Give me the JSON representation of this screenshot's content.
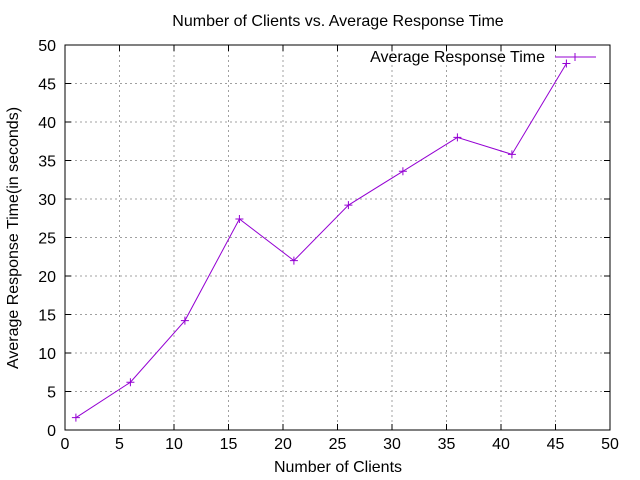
{
  "chart_data": {
    "type": "line",
    "title": "Number of Clients vs. Average Response Time",
    "xlabel": "Number of Clients",
    "ylabel": "Average Response Time(in seconds)",
    "xlim": [
      0,
      50
    ],
    "ylim": [
      0,
      50
    ],
    "xticks": [
      "0",
      "5",
      "10",
      "15",
      "20",
      "25",
      "30",
      "35",
      "40",
      "45",
      "50"
    ],
    "yticks": [
      "0",
      "5",
      "10",
      "15",
      "20",
      "25",
      "30",
      "35",
      "40",
      "45",
      "50"
    ],
    "grid": true,
    "legend_position": "top-right",
    "series": [
      {
        "name": "Average Response Time",
        "color": "#9400d3",
        "marker": "plus",
        "x": [
          1,
          6,
          11,
          16,
          21,
          26,
          31,
          36,
          41,
          46
        ],
        "y": [
          1.6,
          6.2,
          14.2,
          27.4,
          22.0,
          29.2,
          33.6,
          38.0,
          35.8,
          47.6
        ]
      }
    ]
  }
}
